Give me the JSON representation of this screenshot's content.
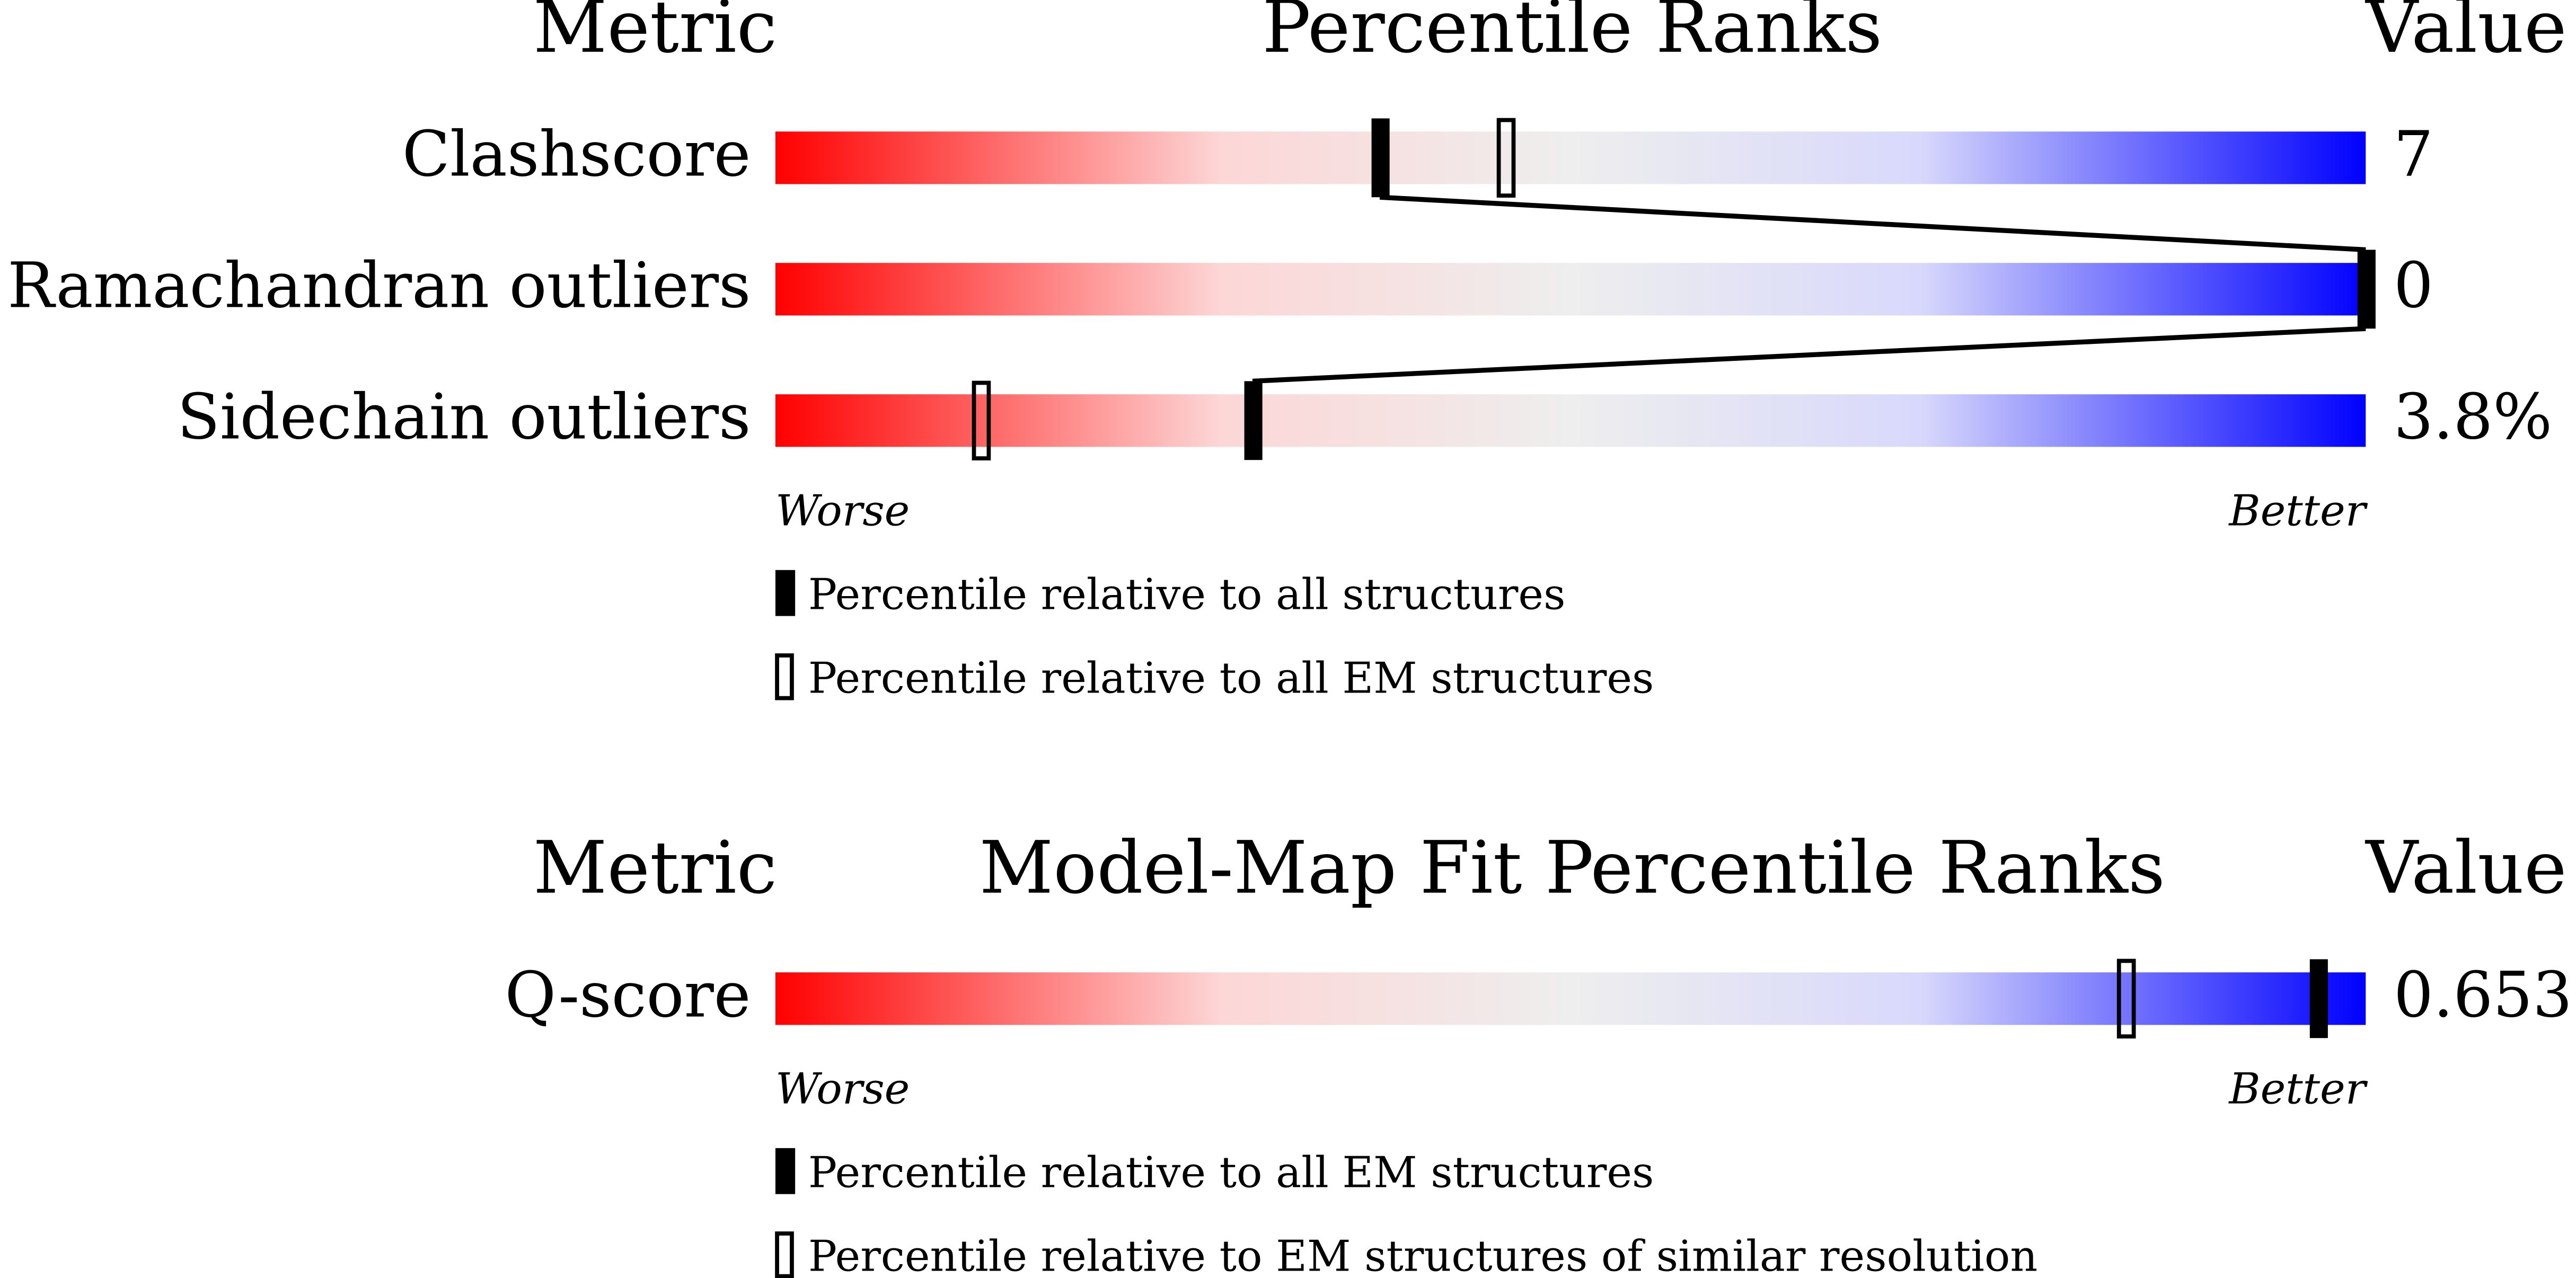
{
  "sections": [
    {
      "headers": {
        "metric": "Metric",
        "title": "Percentile Ranks",
        "value": "Value"
      },
      "xlim": [
        0,
        100
      ],
      "rows": [
        {
          "metric": "Clashscore",
          "value": "7",
          "percentile_all": 38,
          "percentile_em": 46
        },
        {
          "metric": "Ramachandran outliers",
          "value": "0",
          "percentile_all": 100
        },
        {
          "metric": "Sidechain outliers",
          "value": "3.8%",
          "percentile_all": 30,
          "percentile_em": 13
        }
      ],
      "worse": "Worse",
      "better": "Better",
      "legend": {
        "filled": "Percentile relative to all structures",
        "open": "Percentile relative to all EM structures"
      }
    },
    {
      "headers": {
        "metric": "Metric",
        "title": "Model-Map Fit Percentile Ranks",
        "value": "Value"
      },
      "xlim": [
        0,
        100
      ],
      "rows": [
        {
          "metric": "Q-score",
          "value": "0.653",
          "percentile_all": 97,
          "percentile_em": 85
        }
      ],
      "worse": "Worse",
      "better": "Better",
      "legend": {
        "filled": "Percentile relative to all EM structures",
        "open": "Percentile relative to EM structures of similar resolution"
      }
    }
  ]
}
